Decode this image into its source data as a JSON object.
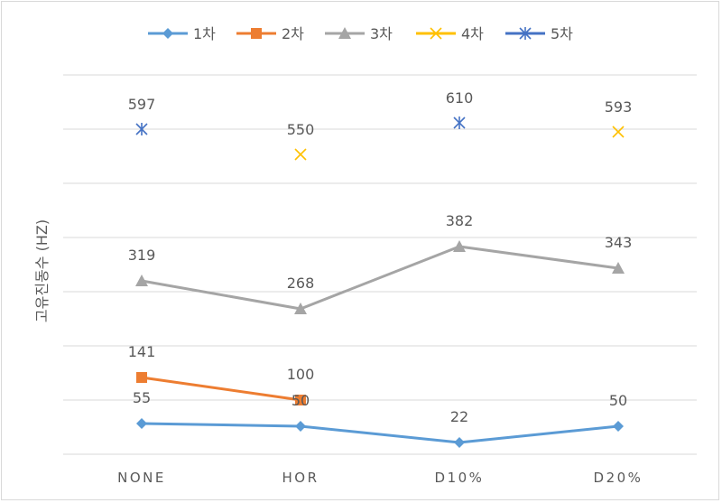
{
  "chart_data": {
    "type": "line",
    "title": "",
    "xlabel": "",
    "ylabel": "고유진동수 (HZ)",
    "categories": [
      "NONE",
      "HOR",
      "D10%",
      "D20%"
    ],
    "y_axis_tick_labels_shown": false,
    "grid": true,
    "legend_position": "top",
    "series": [
      {
        "name": "1차",
        "color": "#5B9BD5",
        "marker": "diamond",
        "connected": true,
        "values": [
          55,
          50,
          22,
          50
        ],
        "labels": [
          "55",
          "50",
          "22",
          "50"
        ]
      },
      {
        "name": "2차",
        "color": "#ED7D31",
        "marker": "square",
        "connected": true,
        "values": [
          141,
          100,
          null,
          null
        ],
        "labels": [
          "141",
          "100",
          "",
          ""
        ]
      },
      {
        "name": "3차",
        "color": "#A5A5A5",
        "marker": "triangle",
        "connected": true,
        "values": [
          319,
          268,
          382,
          343
        ],
        "labels": [
          "319",
          "268",
          "382",
          "343"
        ]
      },
      {
        "name": "4차",
        "color": "#FFC000",
        "marker": "x",
        "connected": false,
        "values": [
          null,
          550,
          null,
          593
        ],
        "labels": [
          "",
          "550",
          "",
          "593"
        ]
      },
      {
        "name": "5차",
        "color": "#4472C4",
        "marker": "asterisk",
        "connected": false,
        "values": [
          597,
          null,
          610,
          null
        ],
        "labels": [
          "597",
          "",
          "610",
          ""
        ]
      }
    ]
  }
}
